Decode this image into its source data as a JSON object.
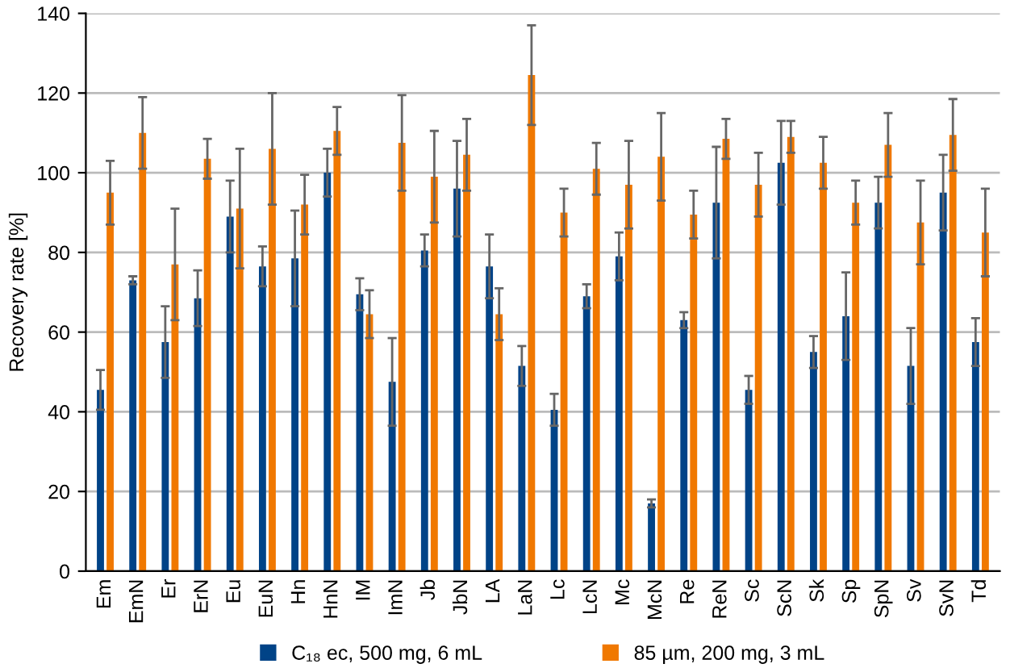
{
  "chart_data": {
    "type": "bar",
    "ylabel": "Recovery rate [%]",
    "categories": [
      "Em",
      "EmN",
      "Er",
      "ErN",
      "Eu",
      "EuN",
      "Hn",
      "HnN",
      "IM",
      "ImN",
      "Jb",
      "JbN",
      "LA",
      "LaN",
      "Lc",
      "LcN",
      "Mc",
      "McN",
      "Re",
      "ReN",
      "Sc",
      "ScN",
      "Sk",
      "Sp",
      "SpN",
      "Sv",
      "SvN",
      "Td"
    ],
    "series": [
      {
        "name": "C₁₈ ec, 500 mg, 6 mL",
        "color": "#004387",
        "values": [
          45.5,
          73,
          57.5,
          68.5,
          89,
          76.5,
          78.5,
          100,
          69.5,
          47.5,
          80.5,
          96,
          76.5,
          51.5,
          40.5,
          69,
          79,
          17,
          63,
          92.5,
          45.5,
          102.5,
          55,
          64,
          92.5,
          51.5,
          95,
          57.5
        ],
        "errors": [
          5,
          1,
          9,
          7,
          9,
          5,
          12,
          6,
          4,
          11,
          4,
          12,
          8,
          5,
          4,
          3,
          6,
          1,
          2,
          14,
          3.5,
          10.5,
          4,
          11,
          6.5,
          9.5,
          9.5,
          6
        ]
      },
      {
        "name": "85 µm, 200 mg, 3 mL",
        "color": "#f07800",
        "values": [
          95,
          110,
          77,
          103.5,
          91,
          106,
          92,
          110.5,
          64.5,
          107.5,
          99,
          104.5,
          64.5,
          124.5,
          90,
          101,
          97,
          104,
          89.5,
          108.5,
          97,
          109,
          102.5,
          92.5,
          107,
          87.5,
          109.5,
          85
        ],
        "errors": [
          8,
          9,
          14,
          5,
          15,
          14,
          7.5,
          6,
          6,
          12,
          11.5,
          9,
          6.5,
          12.5,
          6,
          6.5,
          11,
          11,
          6,
          5,
          8,
          4,
          6.5,
          5.5,
          8,
          10.5,
          9,
          11
        ]
      }
    ],
    "ylim": [
      0,
      140
    ],
    "yticks": [
      0,
      20,
      40,
      60,
      80,
      100,
      120,
      140
    ],
    "grid": "y",
    "legend": "bottom"
  }
}
